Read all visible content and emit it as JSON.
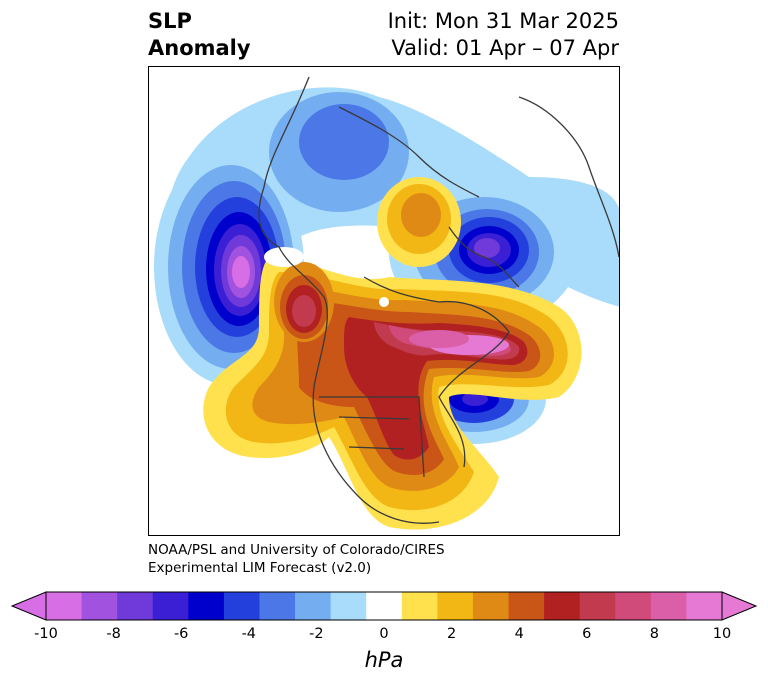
{
  "header": {
    "title_line1": "SLP",
    "title_line2": "Anomaly",
    "init_text": "Init: Mon 31 Mar 2025",
    "valid_text": "Valid: 01 Apr – 07 Apr"
  },
  "credit": {
    "line1": "NOAA/PSL and University of Colorado/CIRES",
    "line2": "Experimental LIM Forecast (v2.0)"
  },
  "colorbar": {
    "units": "hPa",
    "ticks": [
      "-10",
      "-8",
      "-6",
      "-4",
      "-2",
      "0",
      "2",
      "4",
      "6",
      "8",
      "10"
    ],
    "levels": [
      -10,
      -9,
      -8,
      -7,
      -6,
      -5,
      -4,
      -3,
      -2,
      -1,
      1,
      2,
      3,
      4,
      5,
      6,
      7,
      8,
      9,
      10
    ],
    "colors": [
      "#d76ee6",
      "#a152df",
      "#6f3ad9",
      "#3a1fd4",
      "#0000cd",
      "#2340dc",
      "#4b78e6",
      "#74aef0",
      "#a9dcfa",
      "#ffffff",
      "#ffe14d",
      "#f2b714",
      "#e08a16",
      "#c95517",
      "#b12121",
      "#c23a4e",
      "#d04a7a",
      "#da5fa8",
      "#e579d4"
    ],
    "extend_low_color": "#d76ee6",
    "extend_high_color": "#e579d4"
  },
  "map": {
    "projection": "north-polar-stereographic",
    "features": [
      {
        "name": "north-pacific-low",
        "anomaly_hpa": -10,
        "color": "#d76ee6"
      },
      {
        "name": "greenland-sea-low",
        "anomaly_hpa": -7,
        "color": "#6f3ad9"
      },
      {
        "name": "north-atlantic-low",
        "anomaly_hpa": -8,
        "color": "#6f3ad9"
      },
      {
        "name": "arctic-canada-high",
        "anomaly_hpa": 10,
        "color": "#e579d4"
      },
      {
        "name": "alaska-high",
        "anomaly_hpa": 7,
        "color": "#c23a4e"
      },
      {
        "name": "eastern-us-high",
        "anomaly_hpa": 6,
        "color": "#b12121"
      },
      {
        "name": "bering-strait-high",
        "anomaly_hpa": 4,
        "color": "#e08a16"
      }
    ]
  }
}
